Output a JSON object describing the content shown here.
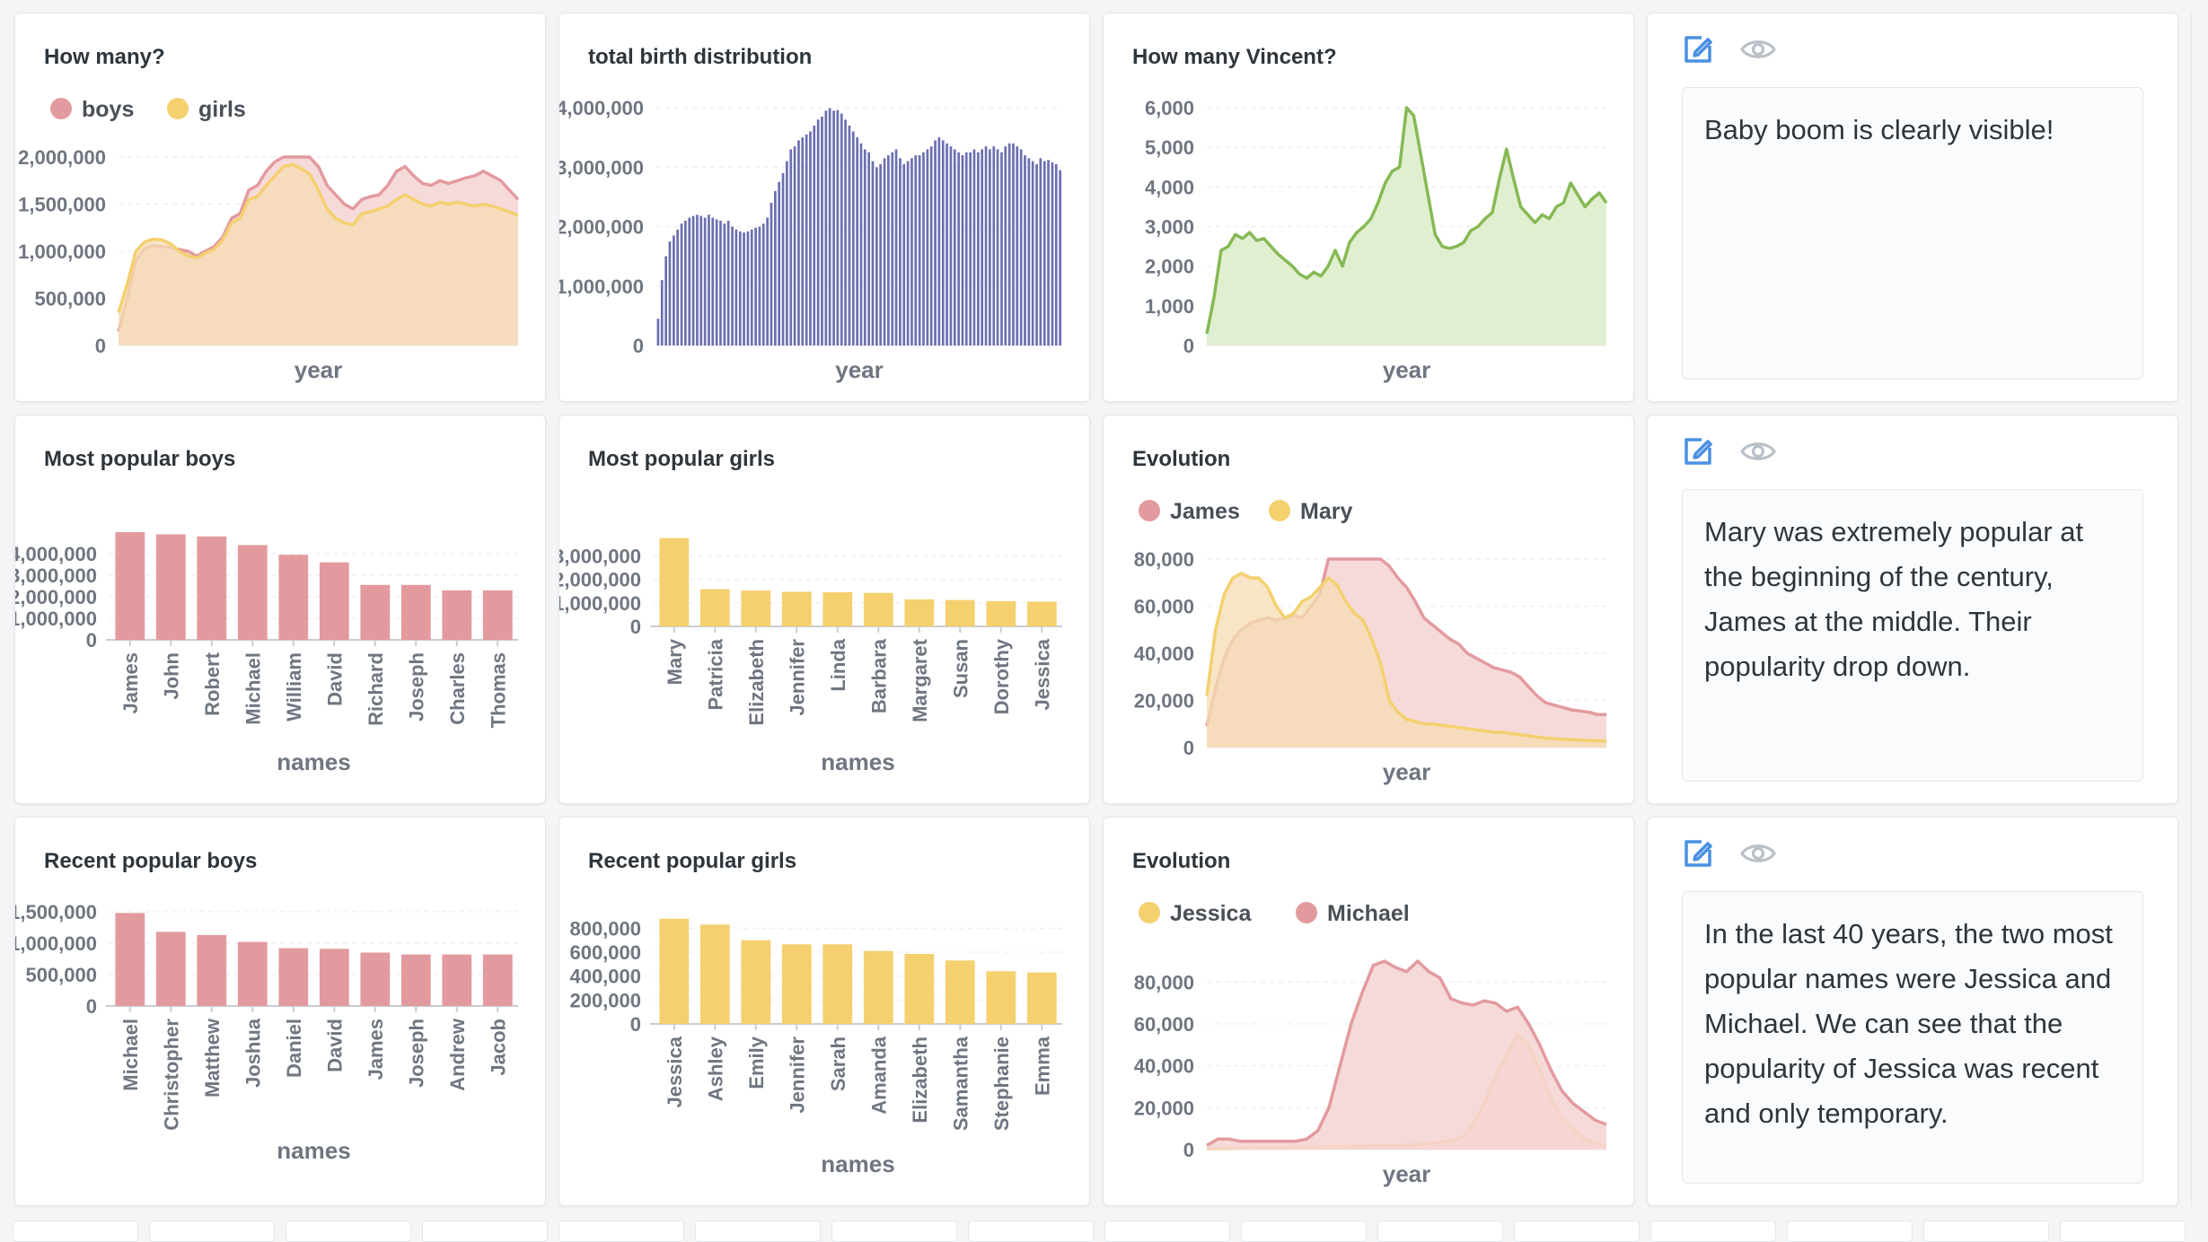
{
  "colors": {
    "red": "#e39a9e",
    "redFill": "#f5d3d4",
    "yellow": "#f4d06f",
    "yellowFill": "#f6dcb1",
    "navy": "#6c6fb0",
    "green": "#86b955",
    "greenFill": "#dcecc9",
    "blueIcon": "#4a90e2",
    "grayIcon": "#b9c0c7"
  },
  "cards": [
    {
      "title": "How many?",
      "type": "area"
    },
    {
      "title": "total birth distribution",
      "type": "bar"
    },
    {
      "title": "How many Vincent?",
      "type": "area"
    },
    {
      "title": "Most popular boys",
      "type": "bar"
    },
    {
      "title": "Most popular girls",
      "type": "bar"
    },
    {
      "title": "Evolution",
      "type": "area"
    },
    {
      "title": "Recent popular boys",
      "type": "bar"
    },
    {
      "title": "Recent popular girls",
      "type": "bar"
    },
    {
      "title": "Evolution",
      "type": "area"
    }
  ],
  "notes": [
    {
      "text": "Baby boom is clearly visible!",
      "icons": [
        "edit-icon",
        "eye-icon"
      ]
    },
    {
      "text": "Mary was extremely popular at the beginning of the century, James at the middle. Their popularity drop down.",
      "icons": [
        "edit-icon",
        "eye-icon"
      ]
    },
    {
      "text": "In the last 40 years, the two most popular names were Jessica and Michael. We can see that the popularity of Jessica was recent and only temporary.",
      "icons": [
        "edit-icon",
        "eye-icon"
      ]
    }
  ],
  "chart_data": [
    {
      "type": "area",
      "title": "How many?",
      "xlabel": "year",
      "ylabel": "",
      "ylim": [
        0,
        2000000
      ],
      "yticks": [
        "0",
        "500,000",
        "1,000,000",
        "1,500,000",
        "2,000,000"
      ],
      "legend": "top-left",
      "series": [
        {
          "name": "boys",
          "color": "red",
          "values": [
            150000,
            500000,
            900000,
            1030000,
            1060000,
            1050000,
            1040000,
            1020000,
            1000000,
            950000,
            1000000,
            1050000,
            1150000,
            1350000,
            1400000,
            1650000,
            1700000,
            1850000,
            1950000,
            2050000,
            2080000,
            2060000,
            2020000,
            1900000,
            1700000,
            1600000,
            1500000,
            1450000,
            1550000,
            1580000,
            1600000,
            1700000,
            1850000,
            1900000,
            1800000,
            1720000,
            1700000,
            1750000,
            1720000,
            1750000,
            1780000,
            1800000,
            1850000,
            1800000,
            1750000,
            1650000,
            1550000
          ]
        },
        {
          "name": "girls",
          "color": "yellow",
          "values": [
            350000,
            650000,
            1000000,
            1100000,
            1130000,
            1120000,
            1080000,
            1000000,
            950000,
            930000,
            980000,
            1020000,
            1120000,
            1300000,
            1350000,
            1550000,
            1580000,
            1700000,
            1800000,
            1900000,
            1920000,
            1880000,
            1820000,
            1650000,
            1450000,
            1350000,
            1300000,
            1280000,
            1400000,
            1420000,
            1450000,
            1480000,
            1550000,
            1600000,
            1550000,
            1500000,
            1480000,
            1520000,
            1500000,
            1520000,
            1500000,
            1480000,
            1500000,
            1480000,
            1450000,
            1420000,
            1380000
          ]
        }
      ]
    },
    {
      "type": "bar",
      "title": "total birth distribution",
      "xlabel": "year",
      "ylabel": "",
      "ylim": [
        0,
        4000000
      ],
      "yticks": [
        "0",
        "1,000,000",
        "2,000,000",
        "3,000,000",
        "4,000,000"
      ],
      "series": [
        {
          "name": "",
          "color": "navy",
          "values": [
            450000,
            1100000,
            1500000,
            1750000,
            1850000,
            1950000,
            2050000,
            2100000,
            2150000,
            2180000,
            2200000,
            2180000,
            2150000,
            2200000,
            2150000,
            2120000,
            2100000,
            2050000,
            2100000,
            2000000,
            1950000,
            1920000,
            1900000,
            1920000,
            1950000,
            1980000,
            2000000,
            2050000,
            2150000,
            2400000,
            2600000,
            2750000,
            2900000,
            3100000,
            3300000,
            3350000,
            3450000,
            3500000,
            3550000,
            3600000,
            3700000,
            3800000,
            3850000,
            3950000,
            3990000,
            3950000,
            3960000,
            3900000,
            3800000,
            3700000,
            3600000,
            3500000,
            3400000,
            3300000,
            3250000,
            3100000,
            3000000,
            3050000,
            3150000,
            3200000,
            3250000,
            3300000,
            3150000,
            3050000,
            3100000,
            3150000,
            3200000,
            3200000,
            3250000,
            3300000,
            3350000,
            3450000,
            3500000,
            3450000,
            3400000,
            3350000,
            3300000,
            3250000,
            3200000,
            3250000,
            3250000,
            3300000,
            3250000,
            3300000,
            3350000,
            3300000,
            3350000,
            3300000,
            3250000,
            3350000,
            3400000,
            3400000,
            3350000,
            3300000,
            3200000,
            3150000,
            3100000,
            3050000,
            3150000,
            3100000,
            3120000,
            3080000,
            3050000,
            2950000
          ]
        }
      ]
    },
    {
      "type": "area",
      "title": "How many Vincent?",
      "xlabel": "year",
      "ylabel": "",
      "ylim": [
        0,
        6000
      ],
      "yticks": [
        "0",
        "1,000",
        "2,000",
        "3,000",
        "4,000",
        "5,000",
        "6,000"
      ],
      "series": [
        {
          "name": "Vincent",
          "color": "green",
          "values": [
            300,
            1200,
            2400,
            2500,
            2800,
            2700,
            2850,
            2650,
            2700,
            2500,
            2300,
            2150,
            2000,
            1800,
            1700,
            1850,
            1750,
            2000,
            2400,
            2000,
            2600,
            2850,
            3000,
            3200,
            3600,
            4100,
            4400,
            4500,
            6200,
            5800,
            4800,
            3800,
            2800,
            2500,
            2450,
            2500,
            2600,
            2900,
            3000,
            3200,
            3350,
            4200,
            4950,
            4200,
            3500,
            3300,
            3100,
            3300,
            3200,
            3500,
            3600,
            4100,
            3800,
            3500,
            3700,
            3850,
            3600
          ]
        }
      ]
    },
    {
      "type": "bar",
      "title": "Most popular boys",
      "xlabel": "names",
      "ylabel": "",
      "ylim": [
        0,
        5000000
      ],
      "yticks": [
        "0",
        "1,000,000",
        "2,000,000",
        "3,000,000",
        "4,000,000"
      ],
      "categories": [
        "James",
        "John",
        "Robert",
        "Michael",
        "William",
        "David",
        "Richard",
        "Joseph",
        "Charles",
        "Thomas"
      ],
      "values": [
        5000000,
        4900000,
        4800000,
        4400000,
        3950000,
        3600000,
        2550000,
        2550000,
        2300000,
        2300000
      ]
    },
    {
      "type": "bar",
      "title": "Most popular girls",
      "xlabel": "names",
      "ylabel": "",
      "ylim": [
        0,
        4000000
      ],
      "yticks": [
        "0",
        "1,000,000",
        "2,000,000",
        "3,000,000"
      ],
      "categories": [
        "Mary",
        "Patricia",
        "Elizabeth",
        "Jennifer",
        "Linda",
        "Barbara",
        "Margaret",
        "Susan",
        "Dorothy",
        "Jessica"
      ],
      "values": [
        3750000,
        1580000,
        1520000,
        1470000,
        1450000,
        1420000,
        1150000,
        1120000,
        1070000,
        1050000
      ]
    },
    {
      "type": "area",
      "title": "Evolution",
      "xlabel": "year",
      "ylabel": "",
      "ylim": [
        0,
        80000
      ],
      "yticks": [
        "0",
        "20,000",
        "40,000",
        "60,000",
        "80,000"
      ],
      "legend": "top-left",
      "series": [
        {
          "name": "James",
          "color": "red",
          "values": [
            9000,
            25000,
            38000,
            46000,
            50000,
            53000,
            54000,
            55000,
            54000,
            55000,
            56000,
            55000,
            60000,
            65000,
            82000,
            92000,
            87000,
            88000,
            86000,
            84000,
            80000,
            77000,
            72000,
            68000,
            62000,
            55000,
            52000,
            49000,
            46000,
            44000,
            40000,
            38000,
            36000,
            34000,
            33000,
            32000,
            30000,
            26000,
            22000,
            19000,
            18000,
            17000,
            16000,
            15500,
            15000,
            14000,
            14000
          ]
        },
        {
          "name": "Mary",
          "color": "yellow",
          "values": [
            22000,
            50000,
            65000,
            72000,
            74000,
            72000,
            72000,
            68000,
            60000,
            55000,
            57000,
            62000,
            64000,
            68000,
            72000,
            69000,
            62000,
            57000,
            54000,
            46000,
            36000,
            20000,
            15000,
            12000,
            11000,
            10000,
            10000,
            9500,
            9000,
            8500,
            8000,
            7500,
            7000,
            6500,
            6500,
            6000,
            5500,
            5000,
            4500,
            4000,
            3800,
            3500,
            3300,
            3200,
            3000,
            2900,
            2800
          ]
        }
      ]
    },
    {
      "type": "bar",
      "title": "Recent popular boys",
      "xlabel": "names",
      "ylabel": "",
      "ylim": [
        0,
        1500000
      ],
      "yticks": [
        "0",
        "500,000",
        "1,000,000",
        "1,500,000"
      ],
      "categories": [
        "Michael",
        "Christopher",
        "Matthew",
        "Joshua",
        "Daniel",
        "David",
        "James",
        "Joseph",
        "Andrew",
        "Jacob"
      ],
      "values": [
        1480000,
        1180000,
        1130000,
        1020000,
        920000,
        910000,
        850000,
        820000,
        820000,
        820000
      ]
    },
    {
      "type": "bar",
      "title": "Recent popular girls",
      "xlabel": "names",
      "ylabel": "",
      "ylim": [
        0,
        900000
      ],
      "yticks": [
        "0",
        "200,000",
        "400,000",
        "600,000",
        "800,000"
      ],
      "categories": [
        "Jessica",
        "Ashley",
        "Emily",
        "Jennifer",
        "Sarah",
        "Amanda",
        "Elizabeth",
        "Samantha",
        "Stephanie",
        "Emma"
      ],
      "values": [
        880000,
        830000,
        700000,
        665000,
        665000,
        610000,
        585000,
        530000,
        440000,
        430000
      ]
    },
    {
      "type": "area",
      "title": "Evolution",
      "xlabel": "year",
      "ylabel": "",
      "ylim": [
        0,
        90000
      ],
      "yticks": [
        "0",
        "20,000",
        "40,000",
        "60,000",
        "80,000"
      ],
      "legend": "top-left",
      "series": [
        {
          "name": "Jessica",
          "color": "yellow",
          "values": [
            500,
            500,
            600,
            700,
            800,
            900,
            900,
            1000,
            1100,
            1200,
            1300,
            1400,
            1500,
            1600,
            1700,
            1800,
            1900,
            2000,
            2200,
            2500,
            3000,
            3500,
            4000,
            6000,
            12000,
            22000,
            35000,
            45000,
            55000,
            50000,
            38000,
            25000,
            15000,
            10000,
            5000,
            3000,
            2000
          ]
        },
        {
          "name": "Michael",
          "color": "red",
          "values": [
            2000,
            5000,
            5000,
            4000,
            4000,
            4000,
            4000,
            4000,
            4000,
            5000,
            9000,
            20000,
            40000,
            60000,
            75000,
            88000,
            92000,
            87000,
            85000,
            90000,
            85000,
            82000,
            72000,
            70000,
            69000,
            71000,
            70000,
            66000,
            68000,
            60000,
            50000,
            38000,
            28000,
            22000,
            18000,
            14000,
            12000
          ]
        }
      ]
    }
  ]
}
